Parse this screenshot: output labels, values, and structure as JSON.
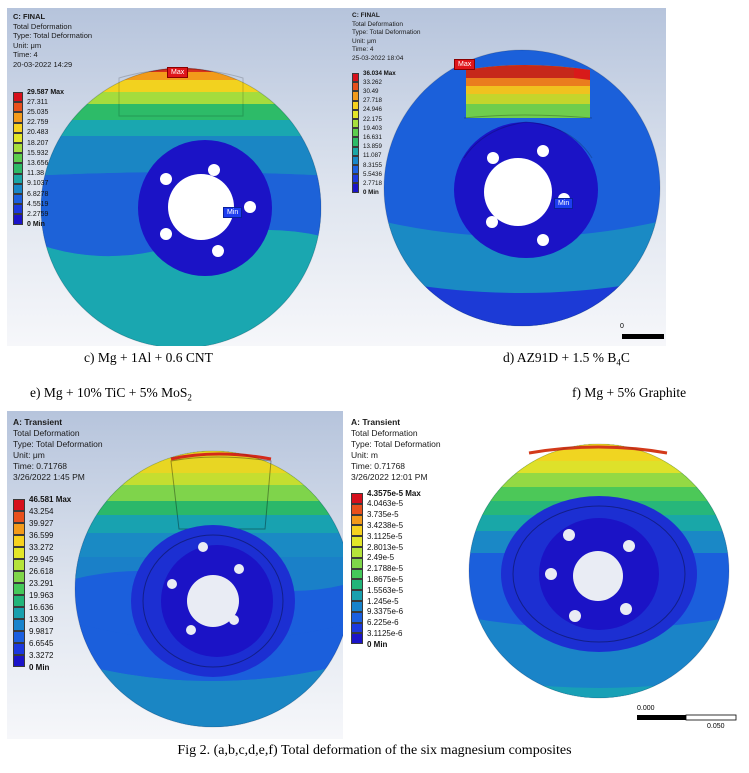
{
  "panels": {
    "c": {
      "title": "C: FINAL",
      "lines": [
        "Total Deformation",
        "Type: Total Deformation",
        "Unit: μm",
        "Time: 4",
        "20-03-2022 14:29"
      ],
      "legend": [
        "29.587 Max",
        "27.311",
        "25.035",
        "22.759",
        "20.483",
        "18.207",
        "15.932",
        "13.656",
        "11.38",
        "9.1037",
        "6.8278",
        "4.5519",
        "2.2759",
        "0 Min"
      ],
      "max_tag": "Max",
      "min_tag": "Min"
    },
    "d": {
      "title": "C: FINAL",
      "lines": [
        "Total Deformation",
        "Type: Total Deformation",
        "Unit: μm",
        "Time: 4",
        "25-03-2022 18:04"
      ],
      "legend": [
        "36.034 Max",
        "33.262",
        "30.49",
        "27.718",
        "24.946",
        "22.175",
        "19.403",
        "16.631",
        "13.859",
        "11.087",
        "8.3155",
        "5.5436",
        "2.7718",
        "0 Min"
      ],
      "max_tag": "Max",
      "min_tag": "Min",
      "scale_zero": "0"
    },
    "e": {
      "title": "A: Transient",
      "lines": [
        "Total Deformation",
        "Type: Total Deformation",
        "Unit: μm",
        "Time: 0.71768",
        "3/26/2022 1:45 PM"
      ],
      "legend": [
        "46.581 Max",
        "43.254",
        "39.927",
        "36.599",
        "33.272",
        "29.945",
        "26.618",
        "23.291",
        "19.963",
        "16.636",
        "13.309",
        "9.9817",
        "6.6545",
        "3.3272",
        "0 Min"
      ]
    },
    "f": {
      "title": "A: Transient",
      "lines": [
        "Total Deformation",
        "Type: Total Deformation",
        "Unit: m",
        "Time: 0.71768",
        "3/26/2022 12:01 PM"
      ],
      "legend": [
        "4.3575e-5 Max",
        "4.0463e-5",
        "3.735e-5",
        "3.4238e-5",
        "3.1125e-5",
        "2.8013e-5",
        "2.49e-5",
        "2.1788e-5",
        "1.8675e-5",
        "1.5563e-5",
        "1.245e-5",
        "9.3375e-6",
        "6.225e-6",
        "3.1125e-6",
        "0 Min"
      ],
      "scale_left": "0.000",
      "scale_right": "0.050"
    }
  },
  "captions": {
    "c": "c)  Mg + 1Al + 0.6 CNT",
    "d": "d) AZ91D + 1.5 % B",
    "d_sub": "4",
    "d_tail": "C",
    "e": "e) Mg + 10% TiC + 5% MoS",
    "e_sub": "2",
    "f": "f) Mg + 5% Graphite",
    "figure": "Fig 2. (a,b,c,d,e,f) Total deformation of the six magnesium composites"
  },
  "colors": {
    "contour_14": [
      "#d6101c",
      "#e8501c",
      "#f39a1a",
      "#f7d21f",
      "#e3e628",
      "#a7de3d",
      "#5ccd4e",
      "#2dba67",
      "#1aa6a6",
      "#1887c8",
      "#1c5fe0",
      "#1c39de",
      "#1b14c8"
    ],
    "contour_15": [
      "#d6101c",
      "#e8501c",
      "#f39a1a",
      "#f7d21f",
      "#e3e628",
      "#b5e33a",
      "#7fd64a",
      "#45c85a",
      "#22b47a",
      "#19a0ae",
      "#1883cc",
      "#1b5fe0",
      "#1c39de",
      "#1b14c8"
    ]
  }
}
